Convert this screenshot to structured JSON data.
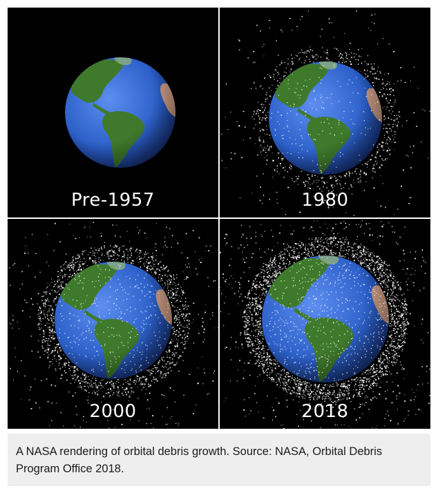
{
  "panels": [
    {
      "label": "Pre-1957",
      "debris_level": "none"
    },
    {
      "label": "1980",
      "debris_level": "low"
    },
    {
      "label": "2000",
      "debris_level": "medium"
    },
    {
      "label": "2018",
      "debris_level": "high"
    }
  ],
  "caption": "A NASA rendering of orbital debris growth. Source: NASA, Orbital Debris Program Office 2018.",
  "colors": {
    "space": "#000000",
    "ocean": "#2b5fc8",
    "land": "#3f7a2c",
    "desert": "#c99a82",
    "debris": "#ffffff",
    "caption_bg": "#eeeeee"
  }
}
